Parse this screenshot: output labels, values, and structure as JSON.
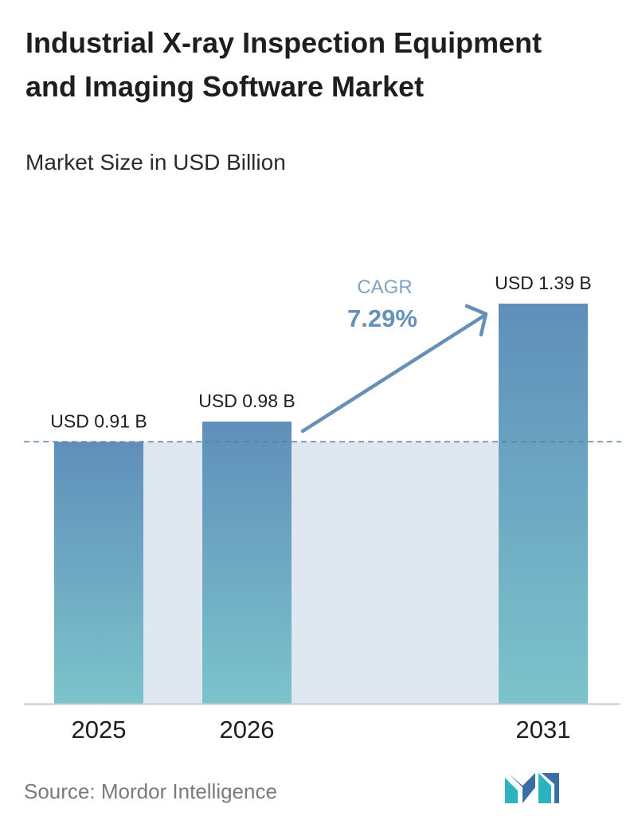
{
  "header": {
    "title": "Industrial X-ray Inspection Equipment and Imaging Software Market",
    "subtitle": "Market Size in USD Billion"
  },
  "chart_data": {
    "type": "bar",
    "categories": [
      "2025",
      "2026",
      "2031"
    ],
    "values": [
      0.91,
      0.98,
      1.39
    ],
    "value_labels": [
      "USD 0.91 B",
      "USD 0.98 B",
      "USD 1.39 B"
    ],
    "cagr_label": "CAGR",
    "cagr_value": "7.29%",
    "reference_line_value": 0.91,
    "grid": false,
    "colors": {
      "bar_top": "#5f8fba",
      "bar_bottom": "#7cc3cb",
      "band": "#dfe8f1",
      "arrow": "#6690b8",
      "axis": "#c8c8c8"
    }
  },
  "footer": {
    "source": "Source:  Mordor Intelligence",
    "logo_icon": "mordor-intelligence-logo"
  }
}
